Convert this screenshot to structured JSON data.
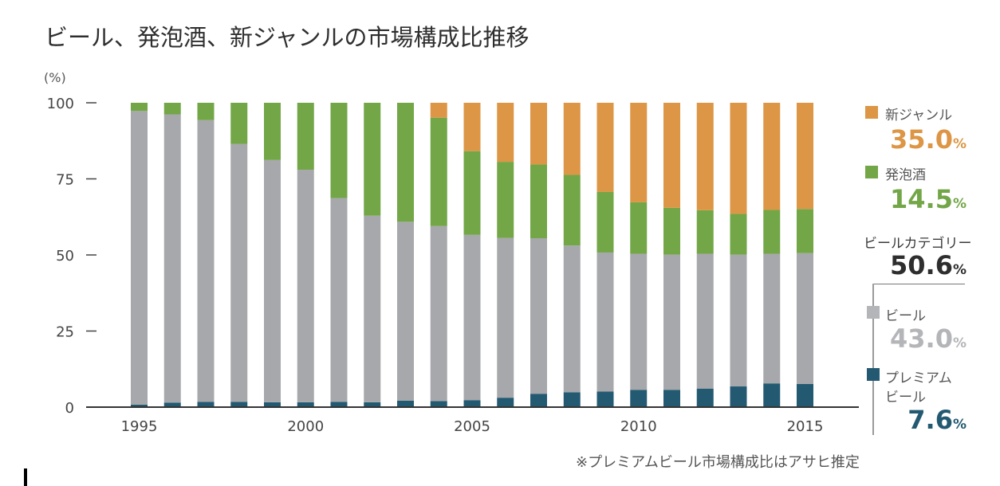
{
  "title": "ビール、発泡酒、新ジャンルの市場構成比推移",
  "footnote": "※プレミアムビール市場構成比はアサヒ推定",
  "chart_data": {
    "type": "bar",
    "stacked": true,
    "title": "ビール、発泡酒、新ジャンルの市場構成比推移",
    "xlabel": "",
    "ylabel": "(%)",
    "ylim": [
      0,
      100
    ],
    "yticks": [
      "0",
      "25",
      "50",
      "75",
      "100"
    ],
    "xtick_labels": [
      "1995",
      "2000",
      "2005",
      "2010",
      "2015"
    ],
    "categories": [
      "1995",
      "1996",
      "1997",
      "1998",
      "1999",
      "2000",
      "2001",
      "2002",
      "2003",
      "2004",
      "2005",
      "2006",
      "2007",
      "2008",
      "2009",
      "2010",
      "2011",
      "2012",
      "2013",
      "2014",
      "2015"
    ],
    "series": [
      {
        "name": "プレミアムビール",
        "color": "#235a72",
        "values": [
          0.8,
          1.5,
          1.7,
          1.7,
          1.6,
          1.6,
          1.7,
          1.6,
          2.1,
          2.0,
          2.3,
          3.1,
          4.4,
          4.9,
          5.1,
          5.7,
          5.7,
          6.1,
          6.8,
          7.8,
          7.6
        ]
      },
      {
        "name": "ビール",
        "color": "#a7a8ab",
        "values": [
          96.5,
          94.7,
          92.6,
          84.8,
          79.6,
          76.4,
          67.0,
          61.3,
          58.8,
          57.5,
          54.3,
          52.5,
          51.1,
          48.2,
          45.7,
          44.7,
          44.4,
          44.3,
          43.3,
          42.6,
          43.0
        ]
      },
      {
        "name": "発泡酒",
        "color": "#72a647",
        "values": [
          2.7,
          3.8,
          5.7,
          13.5,
          18.8,
          22.0,
          31.3,
          37.1,
          39.1,
          35.6,
          27.5,
          25.0,
          24.2,
          23.2,
          19.9,
          16.9,
          15.4,
          14.3,
          13.4,
          14.4,
          14.5
        ]
      },
      {
        "name": "新ジャンル",
        "color": "#dc9645",
        "values": [
          0,
          0,
          0,
          0,
          0,
          0,
          0,
          0,
          0,
          4.9,
          15.9,
          19.4,
          20.3,
          23.7,
          29.3,
          32.7,
          34.5,
          35.3,
          36.5,
          35.2,
          35.0
        ]
      }
    ],
    "legend": {
      "position": "right",
      "items": [
        {
          "name": "新ジャンル",
          "value": "35.0",
          "unit": "%",
          "color": "#dc9645"
        },
        {
          "name": "発泡酒",
          "value": "14.5",
          "unit": "%",
          "color": "#72a647"
        },
        {
          "name": "ビールカテゴリー",
          "value": "50.6",
          "unit": "%",
          "color": "#2e2e2e"
        },
        {
          "name": "ビール",
          "value": "43.0",
          "unit": "%",
          "color": "#b4b5b8"
        },
        {
          "name": "プレミアム\nビール",
          "name_line1": "プレミアム",
          "name_line2": "ビール",
          "value": "7.6",
          "unit": "%",
          "color": "#235a72"
        }
      ]
    },
    "grid": false
  }
}
